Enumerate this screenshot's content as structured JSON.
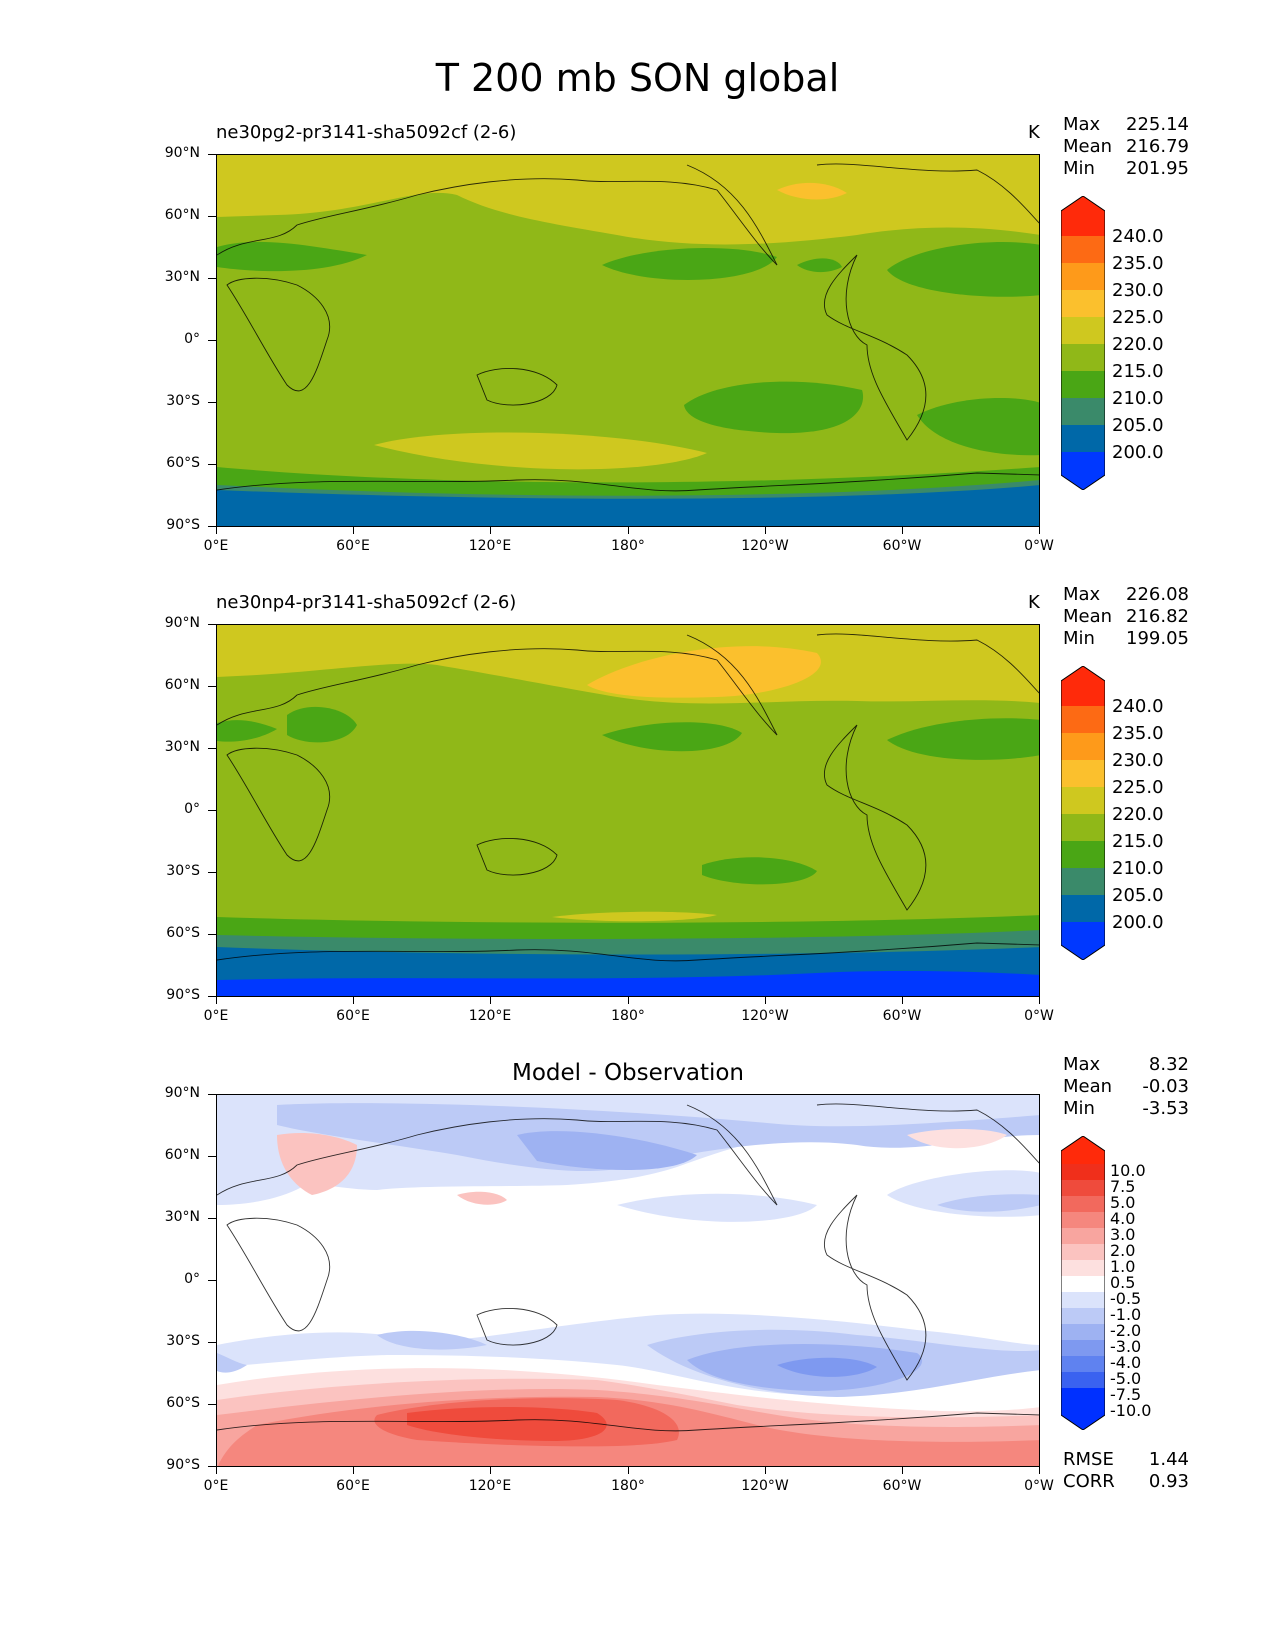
{
  "title": "T 200 mb SON global",
  "panels": [
    {
      "name": "ne30pg2-pr3141-sha5092cf (2-6)",
      "units": "K",
      "stats": {
        "max_label": "Max",
        "max": "225.14",
        "mean_label": "Mean",
        "mean": "216.79",
        "min_label": "Min",
        "min": "201.95"
      },
      "colorbar_labels": [
        "240.0",
        "235.0",
        "230.0",
        "225.0",
        "220.0",
        "215.0",
        "210.0",
        "205.0",
        "200.0"
      ]
    },
    {
      "name": "ne30np4-pr3141-sha5092cf (2-6)",
      "units": "K",
      "stats": {
        "max_label": "Max",
        "max": "226.08",
        "mean_label": "Mean",
        "mean": "216.82",
        "min_label": "Min",
        "min": "199.05"
      },
      "colorbar_labels": [
        "240.0",
        "235.0",
        "230.0",
        "225.0",
        "220.0",
        "215.0",
        "210.0",
        "205.0",
        "200.0"
      ]
    },
    {
      "name": "Model - Observation",
      "units": "",
      "stats": {
        "max_label": "Max",
        "max": "8.32",
        "mean_label": "Mean",
        "mean": "-0.03",
        "min_label": "Min",
        "min": "-3.53"
      },
      "colorbar_labels": [
        "10.0",
        "7.5",
        "5.0",
        "4.0",
        "3.0",
        "2.0",
        "1.0",
        "0.5",
        "-0.5",
        "-1.0",
        "-2.0",
        "-3.0",
        "-4.0",
        "-5.0",
        "-7.5",
        "-10.0"
      ],
      "rmse_label": "RMSE",
      "rmse": "1.44",
      "corr_label": "CORR",
      "corr": "0.93"
    }
  ],
  "y_ticks": [
    "90°N",
    "60°N",
    "30°N",
    "0°",
    "30°S",
    "60°S",
    "90°S"
  ],
  "x_ticks": [
    "0°E",
    "60°E",
    "120°E",
    "180°",
    "120°W",
    "60°W",
    "0°W"
  ],
  "colors": {
    "abs_levels": [
      "#0038ff",
      "#0068a8",
      "#3a8a6a",
      "#4aa615",
      "#90b818",
      "#cfc81f",
      "#fbc02d",
      "#fe9a1a",
      "#fd6a14",
      "#ff2a0a"
    ],
    "diff_levels": [
      "#0030ff",
      "#3a62f0",
      "#5f82f0",
      "#7e99f0",
      "#9eb2f2",
      "#bccaf6",
      "#dbe3fb",
      "#ffffff",
      "#fde0df",
      "#fbc3c0",
      "#f8a59f",
      "#f5877e",
      "#f2695d",
      "#ef4b3c",
      "#f02f1b",
      "#ff2a0a"
    ]
  }
}
